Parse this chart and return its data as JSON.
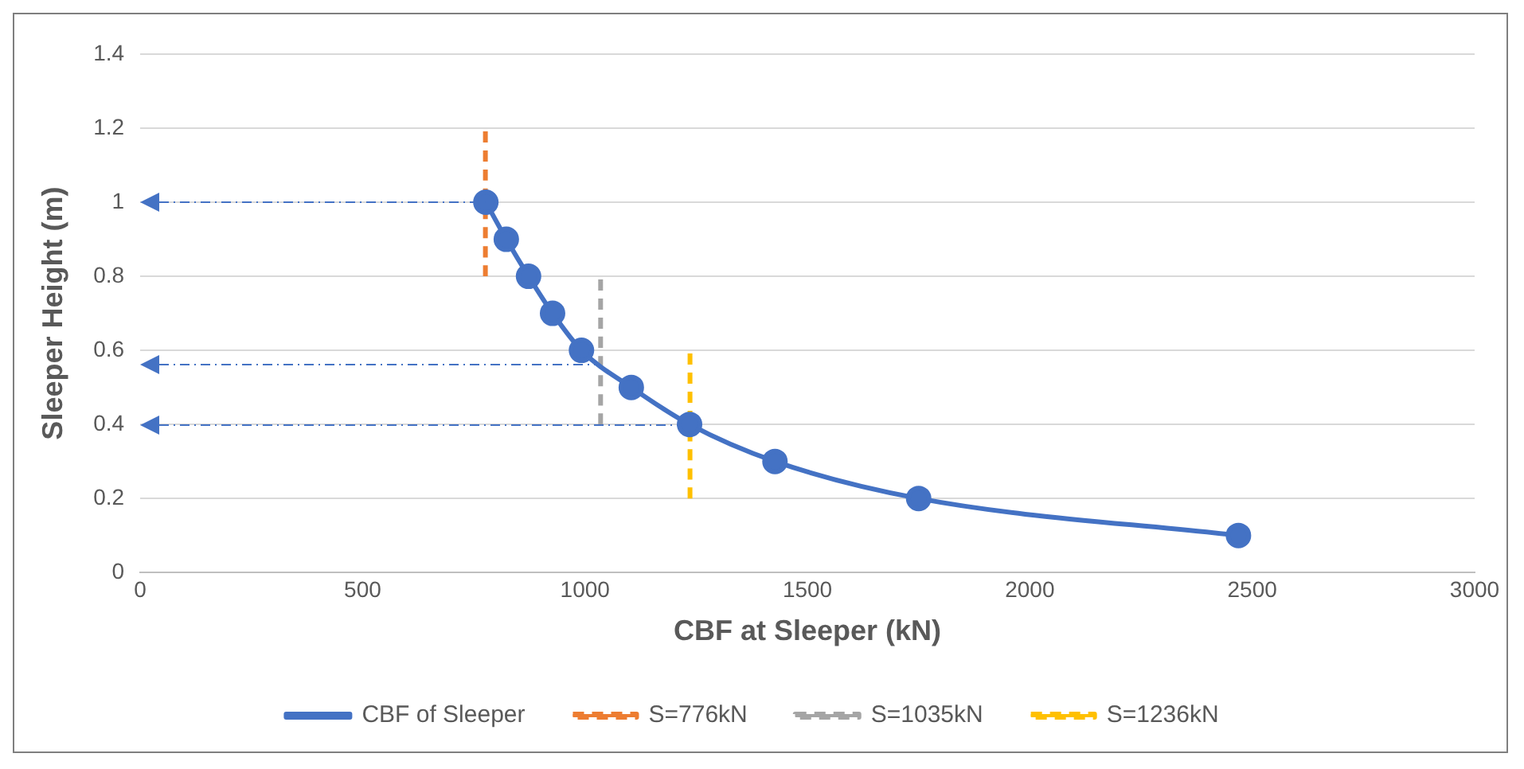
{
  "chart_data": {
    "type": "line",
    "xlabel": "CBF at Sleeper (kN)",
    "ylabel": "Sleeper Height (m)",
    "xlim": [
      0,
      3000
    ],
    "xticks": [
      0,
      500,
      1000,
      1500,
      2000,
      2500,
      3000
    ],
    "ylim": [
      0,
      1.4
    ],
    "yticks": [
      0,
      0.2,
      0.4,
      0.6,
      0.8,
      1,
      1.2,
      1.4
    ],
    "grid": "y",
    "legend": "bottom",
    "marker": "circle",
    "line_style": "solid",
    "series": [
      {
        "name": "CBF of Sleeper",
        "color": "#4472c4",
        "x": [
          777,
          823,
          873,
          927,
          992,
          1104,
          1235,
          1427,
          1750,
          2469
        ],
        "values": [
          1,
          0.9,
          0.8,
          0.7,
          0.6,
          0.5,
          0.4,
          0.3,
          0.2,
          0.1
        ]
      },
      {
        "name": "S=776kN",
        "color": "#ed7d31",
        "marker": "none",
        "line_style": "dashed",
        "x": [
          776,
          776
        ],
        "values": [
          0.8,
          1.2
        ]
      },
      {
        "name": "S=1035kN",
        "color": "#a5a5a5",
        "marker": "none",
        "line_style": "dashed",
        "x": [
          1035,
          1035
        ],
        "values": [
          0.4,
          0.8
        ]
      },
      {
        "name": "S=1236kN",
        "color": "#ffc000",
        "marker": "none",
        "line_style": "dashed",
        "x": [
          1236,
          1236
        ],
        "values": [
          0.2,
          0.6
        ]
      }
    ]
  }
}
